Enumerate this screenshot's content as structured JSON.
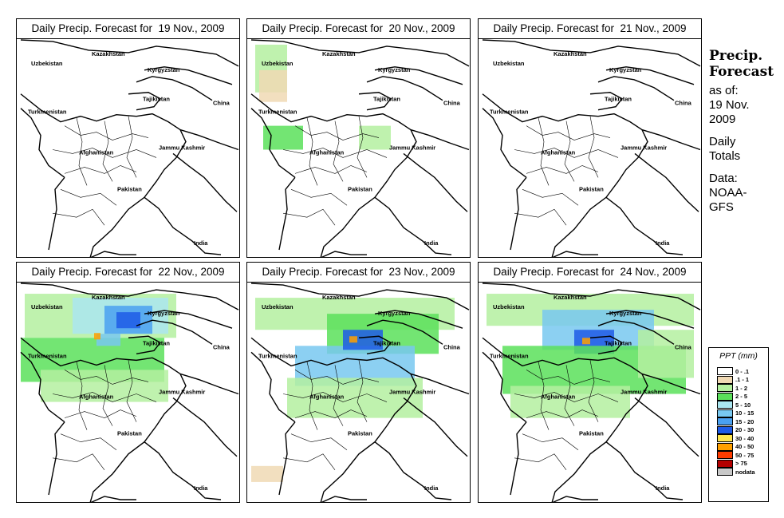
{
  "panels": [
    {
      "title": "Daily Precip. Forecast for  19 Nov., 2009",
      "intensity": 0
    },
    {
      "title": "Daily Precip. Forecast for  20 Nov., 2009",
      "intensity": 1
    },
    {
      "title": "Daily Precip. Forecast for  21 Nov., 2009",
      "intensity": 0
    },
    {
      "title": "Daily Precip. Forecast for  22 Nov., 2009",
      "intensity": 3
    },
    {
      "title": "Daily Precip. Forecast for  23 Nov., 2009",
      "intensity": 2
    },
    {
      "title": "Daily Precip. Forecast for  24 Nov., 2009",
      "intensity": 2
    }
  ],
  "map_labels": {
    "kazakhstan": "Kazakhstan",
    "uzbekistan": "Uzbekistan",
    "kyrgyzstan": "Kyrgyzstan",
    "tajikistan": "Tajikistan",
    "turkmenistan": "Turkmenistan",
    "china": "China",
    "afghanistan": "Afghanistan",
    "jammu_kashmir": "Jammu Kashmir",
    "pakistan": "Pakistan",
    "india": "India"
  },
  "sidebar": {
    "heading_line1": "Precip.",
    "heading_line2": "Forecast",
    "as_of": "as of:",
    "date_line1": "19 Nov.",
    "date_line2": "2009",
    "totals_line1": "Daily",
    "totals_line2": "Totals",
    "data_line1": "Data:",
    "data_line2": "NOAA-",
    "data_line3": "GFS"
  },
  "legend": {
    "title": "PPT (mm)",
    "items": [
      {
        "label": "0 - .1",
        "color": "#ffffff"
      },
      {
        "label": ".1 - 1",
        "color": "#f0d9b4"
      },
      {
        "label": "1 - 2",
        "color": "#b4f0a0"
      },
      {
        "label": "2 - 5",
        "color": "#5ae05a"
      },
      {
        "label": "5 - 10",
        "color": "#aae6f0"
      },
      {
        "label": "10 - 15",
        "color": "#78c8f0"
      },
      {
        "label": "15 - 20",
        "color": "#4aa0f0"
      },
      {
        "label": "20 - 30",
        "color": "#1e5ae6"
      },
      {
        "label": "30 - 40",
        "color": "#ffe650"
      },
      {
        "label": "40 - 50",
        "color": "#ffa000"
      },
      {
        "label": "50 - 75",
        "color": "#ff3c00"
      },
      {
        "label": "> 75",
        "color": "#b40000"
      },
      {
        "label": "nodata",
        "color": "#c8c8c8"
      }
    ]
  }
}
